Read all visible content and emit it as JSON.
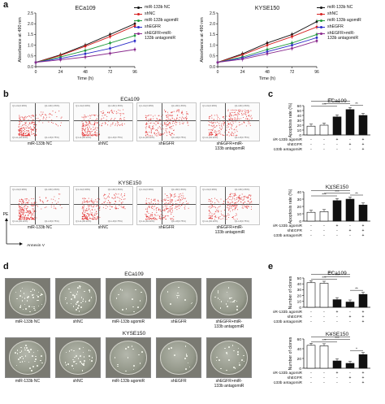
{
  "panel_letters": {
    "a": "a",
    "b": "b",
    "c": "c",
    "d": "d",
    "e": "e"
  },
  "growth": {
    "ylabel": "Absorbance at 490 nm",
    "xlabel": "Time (h)",
    "legend": [
      "miR-133b NC",
      "shNC",
      "miR-133b agomiR",
      "shEGFR",
      "shEGFR+miR-\n133b antagomiR"
    ],
    "colors": [
      "#111111",
      "#d62020",
      "#1f9a3a",
      "#2a2ac8",
      "#8a2b8e"
    ]
  },
  "flow": {
    "ecatitle": "ECa109",
    "kysetitle": "KYSE150",
    "labels": [
      "miR-133b NC",
      "shNC",
      "shEGFR",
      "shEGFR+miR-\n133b antagomiR"
    ],
    "pe": "PE",
    "annexin": "Annexin V",
    "quads": [
      "Q1-UL(0.38%)",
      "Q1-UR(1.65%)",
      "Q1-LL(94.22%)",
      "Q1-LR(3.75%)"
    ]
  },
  "colonies": {
    "ecatitle": "ECa109",
    "kysetitle": "KYSE150",
    "labels": [
      "miR-133b NC",
      "shNC",
      "miR-133b agomiR",
      "shEGFR",
      "shEGFR+miR-\n133b antagomiR"
    ]
  },
  "treat": {
    "row1": "miR-133b agomiR",
    "row2": "shEGFR",
    "row3": "miR-133b antagomiR",
    "signs": [
      [
        "-",
        "-",
        "+",
        "-",
        "+"
      ],
      [
        "-",
        "-",
        "-",
        "+",
        "+"
      ],
      [
        "-",
        "-",
        "-",
        "-",
        "+"
      ]
    ]
  },
  "chart_data": [
    {
      "type": "line",
      "title": "ECa109",
      "xlabel": "Time (h)",
      "ylabel": "Absorbance at 490 nm",
      "x": [
        0,
        24,
        48,
        72,
        96
      ],
      "xlim": [
        0,
        96
      ],
      "ylim": [
        0,
        2.5
      ],
      "yticks": [
        0,
        0.5,
        1.0,
        1.5,
        2.0,
        2.5
      ],
      "legend": "right",
      "series": [
        {
          "name": "miR-133b NC",
          "values": [
            0.2,
            0.55,
            1.0,
            1.5,
            2.0
          ]
        },
        {
          "name": "shNC",
          "values": [
            0.2,
            0.52,
            0.95,
            1.4,
            1.9
          ]
        },
        {
          "name": "miR-133b agomiR",
          "values": [
            0.2,
            0.45,
            0.75,
            1.1,
            1.45
          ]
        },
        {
          "name": "shEGFR",
          "values": [
            0.2,
            0.38,
            0.6,
            0.85,
            1.2
          ]
        },
        {
          "name": "shEGFR+miR-\n133b antagomiR",
          "values": [
            0.2,
            0.32,
            0.45,
            0.62,
            0.8
          ]
        }
      ]
    },
    {
      "type": "line",
      "title": "KYSE150",
      "xlabel": "Time (h)",
      "ylabel": "Absorbance at 490 nm",
      "x": [
        0,
        24,
        48,
        72,
        96
      ],
      "xlim": [
        0,
        96
      ],
      "ylim": [
        0,
        2.5
      ],
      "yticks": [
        0,
        0.5,
        1.0,
        1.5,
        2.0,
        2.5
      ],
      "legend": "right",
      "series": [
        {
          "name": "miR-133b NC",
          "values": [
            0.2,
            0.6,
            1.1,
            1.5,
            2.1
          ]
        },
        {
          "name": "shNC",
          "values": [
            0.2,
            0.55,
            1.0,
            1.4,
            1.85
          ]
        },
        {
          "name": "miR-133b agomiR",
          "values": [
            0.2,
            0.45,
            0.8,
            1.1,
            1.5
          ]
        },
        {
          "name": "shEGFR",
          "values": [
            0.2,
            0.4,
            0.7,
            1.0,
            1.35
          ]
        },
        {
          "name": "shEGFR+miR-\n133b antagomiR",
          "values": [
            0.2,
            0.35,
            0.6,
            0.85,
            1.2
          ]
        }
      ]
    },
    {
      "type": "bar",
      "title": "ECa109",
      "ylabel": "Apoptosis rate (%)",
      "ylim": [
        0,
        60
      ],
      "yticks": [
        0,
        10,
        20,
        30,
        40,
        50,
        60
      ],
      "values": [
        18,
        20,
        37,
        52,
        40
      ],
      "sig": [
        "***",
        "***",
        "***",
        "**"
      ]
    },
    {
      "type": "bar",
      "title": "KYSE150",
      "ylabel": "Apoptosis rate (%)",
      "ylim": [
        0,
        40
      ],
      "yticks": [
        0,
        10,
        20,
        30,
        40
      ],
      "values": [
        12,
        13,
        28,
        30,
        22
      ],
      "sig": [
        "***",
        "***",
        "***",
        "**"
      ]
    },
    {
      "type": "bar",
      "title": "ECa109",
      "ylabel": "Number of clones",
      "ylim": [
        0,
        50
      ],
      "yticks": [
        0,
        10,
        20,
        30,
        40,
        50
      ],
      "values": [
        42,
        41,
        13,
        9,
        22
      ],
      "sig": [
        "***",
        "***",
        "***",
        "**"
      ]
    },
    {
      "type": "bar",
      "title": "KYSE150",
      "ylabel": "Number of clones",
      "ylim": [
        0,
        60
      ],
      "yticks": [
        0,
        20,
        40,
        60
      ],
      "values": [
        47,
        46,
        15,
        10,
        28
      ],
      "sig": [
        "***",
        "***",
        "***",
        "*"
      ]
    }
  ]
}
